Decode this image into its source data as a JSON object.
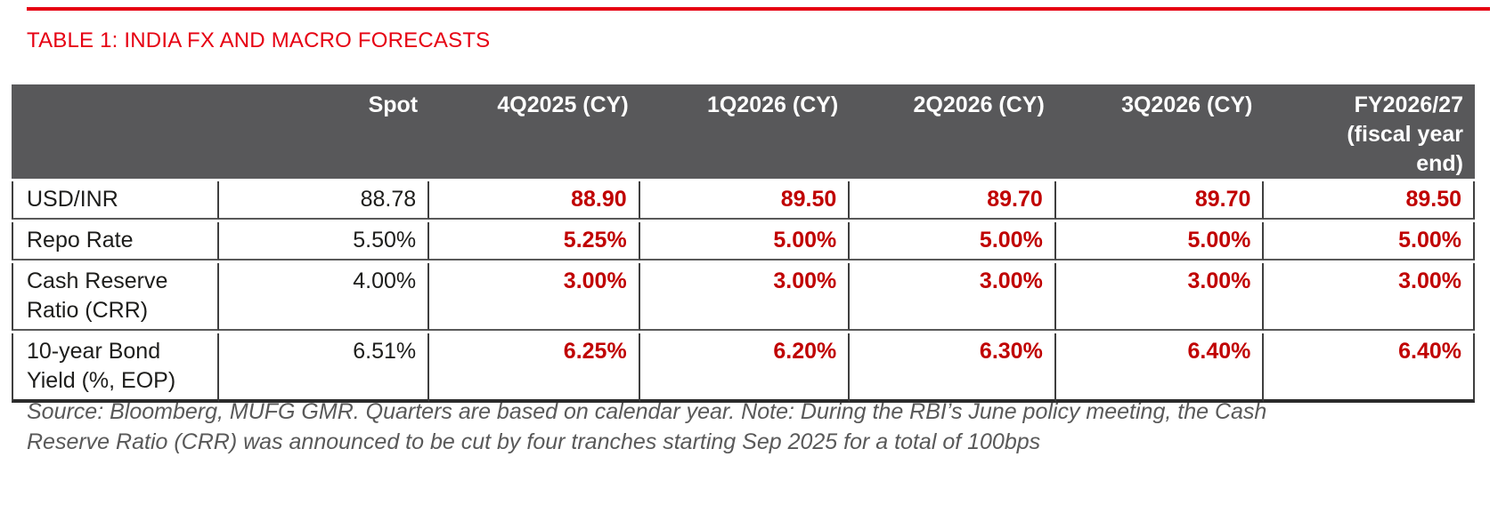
{
  "title": "TABLE 1: INDIA FX AND MACRO FORECASTS",
  "colors": {
    "accent_red": "#e60012",
    "forecast_red": "#c00000",
    "header_bg": "#58585a",
    "note_gray": "#595959"
  },
  "table": {
    "header": [
      "",
      "Spot",
      "4Q2025 (CY)",
      "1Q2026 (CY)",
      "2Q2026 (CY)",
      "3Q2026 (CY)",
      "FY2026/27\n(fiscal year\nend)"
    ],
    "rows": [
      {
        "label": "USD/INR",
        "values": [
          "88.78",
          "88.90",
          "89.50",
          "89.70",
          "89.70",
          "89.50"
        ]
      },
      {
        "label": "Repo Rate",
        "values": [
          "5.50%",
          "5.25%",
          "5.00%",
          "5.00%",
          "5.00%",
          "5.00%"
        ]
      },
      {
        "label": "Cash Reserve Ratio (CRR)",
        "values": [
          "4.00%",
          "3.00%",
          "3.00%",
          "3.00%",
          "3.00%",
          "3.00%"
        ]
      },
      {
        "label": "10-year Bond Yield (%, EOP)",
        "values": [
          "6.51%",
          "6.25%",
          "6.20%",
          "6.30%",
          "6.40%",
          "6.40%"
        ]
      }
    ]
  },
  "note": {
    "text": "Source: Bloomberg, MUFG GMR. Quarters are based on calendar year. Note: During the RBI’s June policy meeting, the Cash\nReserve Ratio (CRR) was announced to be cut by four tranches starting Sep 2025 for a total of 100bps"
  },
  "chart_data": {
    "type": "table",
    "title": "TABLE 1: INDIA FX AND MACRO FORECASTS",
    "columns": [
      "",
      "Spot",
      "4Q2025 (CY)",
      "1Q2026 (CY)",
      "2Q2026 (CY)",
      "3Q2026 (CY)",
      "FY2026/27 (fiscal year end)"
    ],
    "rows": [
      [
        "USD/INR",
        88.78,
        88.9,
        89.5,
        89.7,
        89.7,
        89.5
      ],
      [
        "Repo Rate",
        "5.50%",
        "5.25%",
        "5.00%",
        "5.00%",
        "5.00%",
        "5.00%"
      ],
      [
        "Cash Reserve Ratio (CRR)",
        "4.00%",
        "3.00%",
        "3.00%",
        "3.00%",
        "3.00%",
        "3.00%"
      ],
      [
        "10-year Bond Yield (%, EOP)",
        "6.51%",
        "6.25%",
        "6.20%",
        "6.30%",
        "6.40%",
        "6.40%"
      ]
    ]
  }
}
